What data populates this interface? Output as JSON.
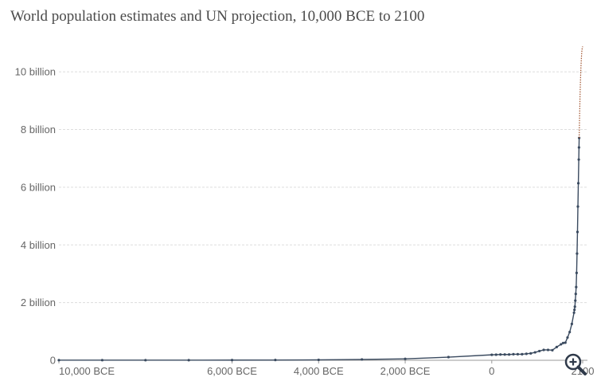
{
  "title": "World population estimates and UN projection, 10,000 BCE to 2100",
  "zoom_icon": "zoom-in-icon",
  "chart_data": {
    "type": "line",
    "title": "World population estimates and UN projection, 10,000 BCE to 2100",
    "xlabel": "",
    "ylabel": "",
    "xlim": [
      -10000,
      2100
    ],
    "ylim": [
      0,
      11000000000
    ],
    "grid": true,
    "x_ticks": [
      {
        "value": -10000,
        "label": "10,000 BCE"
      },
      {
        "value": -6000,
        "label": "6,000 BCE"
      },
      {
        "value": -4000,
        "label": "4,000 BCE"
      },
      {
        "value": -2000,
        "label": "2,000 BCE"
      },
      {
        "value": 0,
        "label": "0"
      },
      {
        "value": 2100,
        "label": "2100"
      }
    ],
    "y_ticks": [
      {
        "value": 0,
        "label": "0"
      },
      {
        "value": 2000000000,
        "label": "2 billion"
      },
      {
        "value": 4000000000,
        "label": "4 billion"
      },
      {
        "value": 6000000000,
        "label": "6 billion"
      },
      {
        "value": 8000000000,
        "label": "8 billion"
      },
      {
        "value": 10000000000,
        "label": "10 billion"
      }
    ],
    "series": [
      {
        "color": "#3a4a5f",
        "style": "solid",
        "points": [
          [
            -10000,
            4500000
          ],
          [
            -9000,
            5000000
          ],
          [
            -8000,
            5000000
          ],
          [
            -7000,
            5000000
          ],
          [
            -6000,
            7000000
          ],
          [
            -5000,
            10000000
          ],
          [
            -4000,
            15000000
          ],
          [
            -3000,
            30000000
          ],
          [
            -2000,
            50000000
          ],
          [
            -1000,
            110000000
          ],
          [
            0,
            190000000
          ],
          [
            100,
            195000000
          ],
          [
            200,
            200000000
          ],
          [
            300,
            200000000
          ],
          [
            400,
            200000000
          ],
          [
            500,
            210000000
          ],
          [
            600,
            210000000
          ],
          [
            700,
            210000000
          ],
          [
            800,
            225000000
          ],
          [
            900,
            240000000
          ],
          [
            1000,
            275000000
          ],
          [
            1100,
            320000000
          ],
          [
            1200,
            360000000
          ],
          [
            1300,
            360000000
          ],
          [
            1400,
            350000000
          ],
          [
            1500,
            460000000
          ],
          [
            1600,
            555000000
          ],
          [
            1650,
            600000000
          ],
          [
            1700,
            610000000
          ],
          [
            1750,
            790000000
          ],
          [
            1800,
            980000000
          ],
          [
            1850,
            1260000000
          ],
          [
            1900,
            1650000000
          ],
          [
            1910,
            1750000000
          ],
          [
            1920,
            1860000000
          ],
          [
            1930,
            2070000000
          ],
          [
            1940,
            2300000000
          ],
          [
            1950,
            2540000000
          ],
          [
            1960,
            3030000000
          ],
          [
            1970,
            3700000000
          ],
          [
            1980,
            4450000000
          ],
          [
            1990,
            5330000000
          ],
          [
            2000,
            6140000000
          ],
          [
            2010,
            6960000000
          ],
          [
            2015,
            7380000000
          ],
          [
            2019,
            7710000000
          ]
        ]
      },
      {
        "color": "#a0522d",
        "style": "dotted",
        "points": [
          [
            2019,
            7710000000
          ],
          [
            2030,
            8550000000
          ],
          [
            2040,
            9200000000
          ],
          [
            2050,
            9740000000
          ],
          [
            2060,
            10150000000
          ],
          [
            2070,
            10470000000
          ],
          [
            2080,
            10700000000
          ],
          [
            2090,
            10830000000
          ],
          [
            2100,
            10880000000
          ]
        ]
      }
    ]
  }
}
